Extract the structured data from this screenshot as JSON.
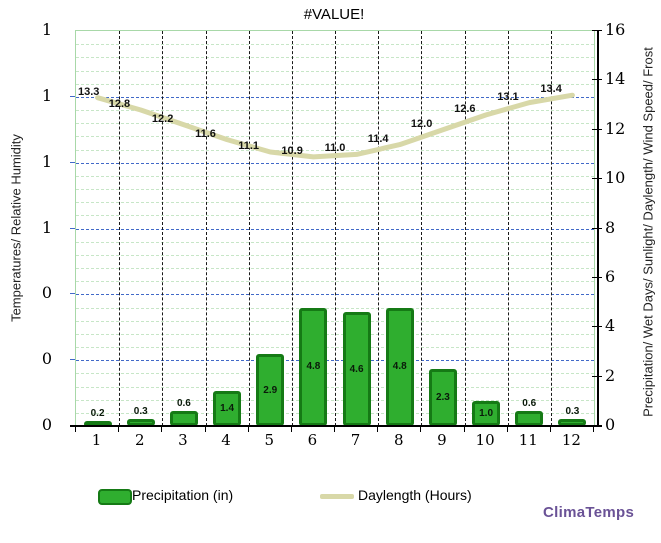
{
  "title": "#VALUE!",
  "branding": "ClimaTemps",
  "left_axis": {
    "label": "Temperatures/ Relative Humidity",
    "ticks": [
      "1",
      "1",
      "1",
      "1",
      "0",
      "0",
      "0"
    ]
  },
  "right_axis": {
    "label": "Precipitation/ Wet Days/ Sunlight/ Daylength/ Wind Speed/ Frost",
    "ticks": [
      "16",
      "14",
      "12",
      "10",
      "8",
      "6",
      "4",
      "2",
      "0"
    ]
  },
  "x_axis": {
    "categories": [
      "1",
      "2",
      "3",
      "4",
      "5",
      "6",
      "7",
      "8",
      "9",
      "10",
      "11",
      "12"
    ]
  },
  "legend": {
    "items": [
      {
        "label": "Precipitation (in)",
        "swatch": "bar-swatch"
      },
      {
        "label": "Daylength (Hours)",
        "swatch": "line-swatch"
      }
    ]
  },
  "colors": {
    "bar_fill": "#2fae2f",
    "bar_border": "#157a15",
    "line": "#d8d8a8",
    "grid_major": "#4169c8",
    "grid_minor": "#c7e6c7",
    "grid_vertical": "#1a1a1a",
    "plot_border": "#a8d8a8",
    "brand_text": "#6a5296"
  },
  "chart_data": {
    "type": "bar",
    "title": "#VALUE!",
    "categories": [
      "1",
      "2",
      "3",
      "4",
      "5",
      "6",
      "7",
      "8",
      "9",
      "10",
      "11",
      "12"
    ],
    "series": [
      {
        "name": "Precipitation (in)",
        "type": "bar",
        "yaxis": "right",
        "values": [
          0.2,
          0.3,
          0.6,
          1.4,
          2.9,
          4.8,
          4.6,
          4.8,
          2.3,
          1.0,
          0.6,
          0.3
        ]
      },
      {
        "name": "Daylength (Hours)",
        "type": "line",
        "yaxis": "right",
        "values": [
          13.3,
          12.8,
          12.2,
          11.6,
          11.1,
          10.9,
          11.0,
          11.4,
          12.0,
          12.6,
          13.1,
          13.4
        ]
      }
    ],
    "right_axis_range": [
      0,
      16
    ],
    "right_axis_tick_step": 2,
    "left_axis_tick_labels": [
      "1",
      "1",
      "1",
      "1",
      "0",
      "0",
      "0"
    ],
    "xlabel": "",
    "ylabel_left": "Temperatures/ Relative Humidity",
    "ylabel_right": "Precipitation/ Wet Days/ Sunlight/ Daylength/ Wind Speed/ Frost",
    "grid": true,
    "legend_position": "bottom",
    "data_labels": true
  }
}
